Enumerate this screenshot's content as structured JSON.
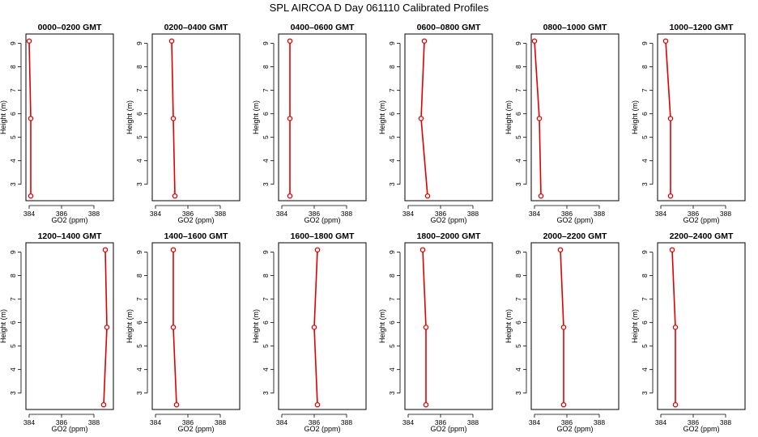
{
  "title": "SPL AIRCOA D  Day 061110  Calibrated Profiles",
  "chart_data": [
    {
      "type": "line",
      "title": "0000–0200 GMT",
      "xlabel": "GO2 (ppm)",
      "ylabel": "Height (m)",
      "xlim": [
        383.8,
        389.2
      ],
      "ylim": [
        2.3,
        9.4
      ],
      "xticks": [
        "384",
        "386",
        "388"
      ],
      "yticks": [
        "3",
        "4",
        "5",
        "6",
        "7",
        "8",
        "9"
      ],
      "color": "#e00000",
      "x": [
        384.1,
        384.1,
        384.0
      ],
      "y": [
        2.5,
        5.8,
        9.1
      ]
    },
    {
      "type": "line",
      "title": "0200–0400 GMT",
      "xlabel": "GO2 (ppm)",
      "ylabel": "Height (m)",
      "xlim": [
        383.8,
        389.2
      ],
      "ylim": [
        2.3,
        9.4
      ],
      "xticks": [
        "384",
        "386",
        "388"
      ],
      "yticks": [
        "3",
        "4",
        "5",
        "6",
        "7",
        "8",
        "9"
      ],
      "color": "#e00000",
      "x": [
        385.2,
        385.1,
        385.0
      ],
      "y": [
        2.5,
        5.8,
        9.1
      ]
    },
    {
      "type": "line",
      "title": "0400–0600 GMT",
      "xlabel": "GO2 (ppm)",
      "ylabel": "Height (m)",
      "xlim": [
        383.8,
        389.2
      ],
      "ylim": [
        2.3,
        9.4
      ],
      "xticks": [
        "384",
        "386",
        "388"
      ],
      "yticks": [
        "3",
        "4",
        "5",
        "6",
        "7",
        "8",
        "9"
      ],
      "color": "#e00000",
      "x": [
        384.5,
        384.5,
        384.5
      ],
      "y": [
        2.5,
        5.8,
        9.1
      ]
    },
    {
      "type": "line",
      "title": "0600–0800 GMT",
      "xlabel": "GO2 (ppm)",
      "ylabel": "Height (m)",
      "xlim": [
        383.8,
        389.2
      ],
      "ylim": [
        2.3,
        9.4
      ],
      "xticks": [
        "384",
        "386",
        "388"
      ],
      "yticks": [
        "3",
        "4",
        "5",
        "6",
        "7",
        "8",
        "9"
      ],
      "color": "#e00000",
      "x": [
        385.2,
        384.8,
        385.0
      ],
      "y": [
        2.5,
        5.8,
        9.1
      ]
    },
    {
      "type": "line",
      "title": "0800–1000 GMT",
      "xlabel": "GO2 (ppm)",
      "ylabel": "Height (m)",
      "xlim": [
        383.8,
        389.2
      ],
      "ylim": [
        2.3,
        9.4
      ],
      "xticks": [
        "384",
        "386",
        "388"
      ],
      "yticks": [
        "3",
        "4",
        "5",
        "6",
        "7",
        "8",
        "9"
      ],
      "color": "#e00000",
      "x": [
        384.4,
        384.3,
        384.0
      ],
      "y": [
        2.5,
        5.8,
        9.1
      ]
    },
    {
      "type": "line",
      "title": "1000–1200 GMT",
      "xlabel": "GO2 (ppm)",
      "ylabel": "Height (m)",
      "xlim": [
        383.8,
        389.2
      ],
      "ylim": [
        2.3,
        9.4
      ],
      "xticks": [
        "384",
        "386",
        "388"
      ],
      "yticks": [
        "3",
        "4",
        "5",
        "6",
        "7",
        "8",
        "9"
      ],
      "color": "#e00000",
      "x": [
        384.6,
        384.6,
        384.3
      ],
      "y": [
        2.5,
        5.8,
        9.1
      ]
    },
    {
      "type": "line",
      "title": "1200–1400 GMT",
      "xlabel": "GO2 (ppm)",
      "ylabel": "Height (m)",
      "xlim": [
        383.8,
        389.2
      ],
      "ylim": [
        2.3,
        9.4
      ],
      "xticks": [
        "384",
        "386",
        "388"
      ],
      "yticks": [
        "3",
        "4",
        "5",
        "6",
        "7",
        "8",
        "9"
      ],
      "color": "#e00000",
      "x": [
        388.6,
        388.8,
        388.7
      ],
      "y": [
        2.5,
        5.8,
        9.1
      ]
    },
    {
      "type": "line",
      "title": "1400–1600 GMT",
      "xlabel": "GO2 (ppm)",
      "ylabel": "Height (m)",
      "xlim": [
        383.8,
        389.2
      ],
      "ylim": [
        2.3,
        9.4
      ],
      "xticks": [
        "384",
        "386",
        "388"
      ],
      "yticks": [
        "3",
        "4",
        "5",
        "6",
        "7",
        "8",
        "9"
      ],
      "color": "#e00000",
      "x": [
        385.3,
        385.1,
        385.1
      ],
      "y": [
        2.5,
        5.8,
        9.1
      ]
    },
    {
      "type": "line",
      "title": "1600–1800 GMT",
      "xlabel": "GO2 (ppm)",
      "ylabel": "Height (m)",
      "xlim": [
        383.8,
        389.2
      ],
      "ylim": [
        2.3,
        9.4
      ],
      "xticks": [
        "384",
        "386",
        "388"
      ],
      "yticks": [
        "3",
        "4",
        "5",
        "6",
        "7",
        "8",
        "9"
      ],
      "color": "#e00000",
      "x": [
        386.2,
        386.0,
        386.2
      ],
      "y": [
        2.5,
        5.8,
        9.1
      ]
    },
    {
      "type": "line",
      "title": "1800–2000 GMT",
      "xlabel": "GO2 (ppm)",
      "ylabel": "Height (m)",
      "xlim": [
        383.8,
        389.2
      ],
      "ylim": [
        2.3,
        9.4
      ],
      "xticks": [
        "384",
        "386",
        "388"
      ],
      "yticks": [
        "3",
        "4",
        "5",
        "6",
        "7",
        "8",
        "9"
      ],
      "color": "#e00000",
      "x": [
        385.1,
        385.1,
        384.9
      ],
      "y": [
        2.5,
        5.8,
        9.1
      ]
    },
    {
      "type": "line",
      "title": "2000–2200 GMT",
      "xlabel": "GO2 (ppm)",
      "ylabel": "Height (m)",
      "xlim": [
        383.8,
        389.2
      ],
      "ylim": [
        2.3,
        9.4
      ],
      "xticks": [
        "384",
        "386",
        "388"
      ],
      "yticks": [
        "3",
        "4",
        "5",
        "6",
        "7",
        "8",
        "9"
      ],
      "color": "#e00000",
      "x": [
        385.8,
        385.8,
        385.6
      ],
      "y": [
        2.5,
        5.8,
        9.1
      ]
    },
    {
      "type": "line",
      "title": "2200–2400 GMT",
      "xlabel": "GO2 (ppm)",
      "ylabel": "Height (m)",
      "xlim": [
        383.8,
        389.2
      ],
      "ylim": [
        2.3,
        9.4
      ],
      "xticks": [
        "384",
        "386",
        "388"
      ],
      "yticks": [
        "3",
        "4",
        "5",
        "6",
        "7",
        "8",
        "9"
      ],
      "color": "#e00000",
      "x": [
        384.9,
        384.9,
        384.7
      ],
      "y": [
        2.5,
        5.8,
        9.1
      ]
    }
  ]
}
